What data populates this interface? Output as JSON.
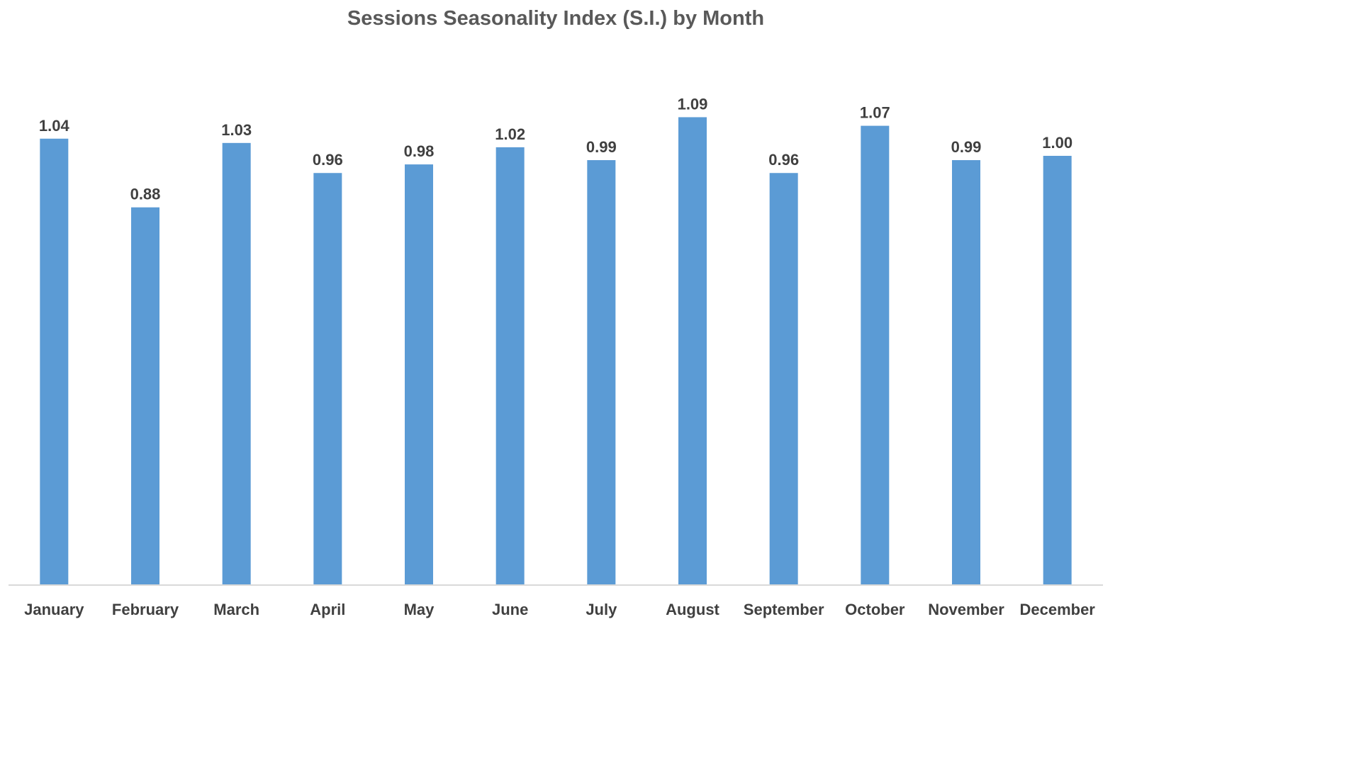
{
  "chart_data": {
    "type": "bar",
    "title": "Sessions Seasonality Index (S.I.) by Month",
    "xlabel": "",
    "ylabel": "",
    "categories": [
      "January",
      "February",
      "March",
      "April",
      "May",
      "June",
      "July",
      "August",
      "September",
      "October",
      "November",
      "December"
    ],
    "values": [
      1.04,
      0.88,
      1.03,
      0.96,
      0.98,
      1.02,
      0.99,
      1.09,
      0.96,
      1.07,
      0.99,
      1.0
    ],
    "data_labels": [
      "1.04",
      "0.88",
      "1.03",
      "0.96",
      "0.98",
      "1.02",
      "0.99",
      "1.09",
      "0.96",
      "1.07",
      "0.99",
      "1.00"
    ],
    "ylim": [
      0,
      1.2
    ],
    "grid": false,
    "legend": "none",
    "colors": {
      "bar": "#5b9bd5",
      "axis": "#d9d9d9",
      "text": "#404040",
      "title": "#595959"
    }
  }
}
